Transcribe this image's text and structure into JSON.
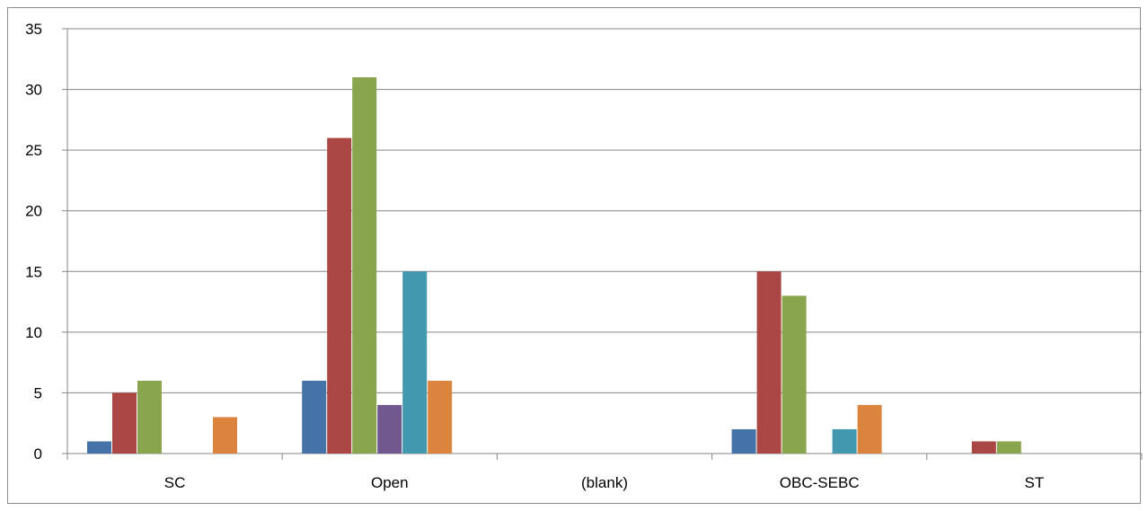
{
  "chart_data": {
    "type": "bar",
    "categories": [
      "SC",
      "Open",
      "(blank)",
      "OBC-SEBC",
      "ST"
    ],
    "series": [
      {
        "color": "#4572a7",
        "values": [
          1,
          6,
          0,
          2,
          0
        ]
      },
      {
        "color": "#aa4643",
        "values": [
          5,
          26,
          0,
          15,
          1
        ]
      },
      {
        "color": "#89a54e",
        "values": [
          6,
          31,
          0,
          13,
          1
        ]
      },
      {
        "color": "#71588f",
        "values": [
          0,
          4,
          0,
          0,
          0
        ]
      },
      {
        "color": "#4198af",
        "values": [
          0,
          15,
          0,
          2,
          0
        ]
      },
      {
        "color": "#db843d",
        "values": [
          3,
          6,
          0,
          4,
          0
        ]
      }
    ],
    "ylim": [
      0,
      35
    ],
    "yticks": [
      0,
      5,
      10,
      15,
      20,
      25,
      30,
      35
    ],
    "grid": true,
    "legend": "none",
    "title": "",
    "xlabel": "",
    "ylabel": ""
  }
}
